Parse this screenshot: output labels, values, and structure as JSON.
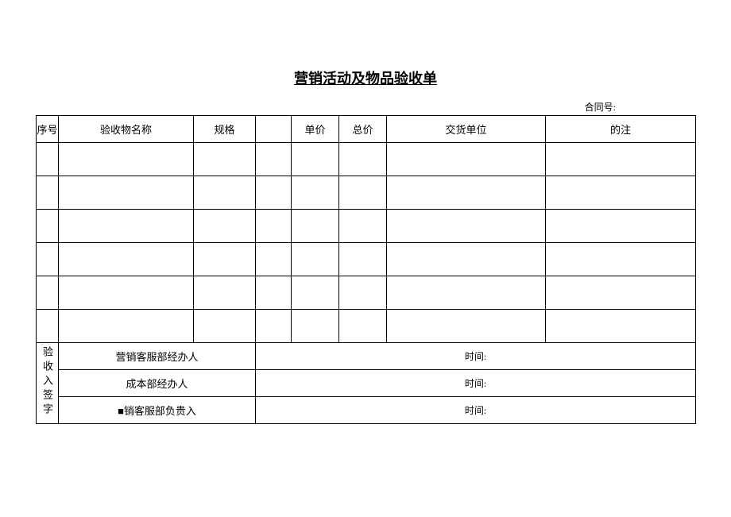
{
  "title": "营销活动及物品验收单",
  "contract_label": "合同号:",
  "headers": {
    "seq": "序号",
    "name": "验收物名称",
    "spec": "规格",
    "blank": "",
    "price": "单价",
    "total": "总价",
    "vendor": "交货单位",
    "note": "的注"
  },
  "rows": [
    {
      "seq": "",
      "name": "",
      "spec": "",
      "blank": "",
      "price": "",
      "total": "",
      "vendor": "",
      "note": ""
    },
    {
      "seq": "",
      "name": "",
      "spec": "",
      "blank": "",
      "price": "",
      "total": "",
      "vendor": "",
      "note": ""
    },
    {
      "seq": "",
      "name": "",
      "spec": "",
      "blank": "",
      "price": "",
      "total": "",
      "vendor": "",
      "note": ""
    },
    {
      "seq": "",
      "name": "",
      "spec": "",
      "blank": "",
      "price": "",
      "total": "",
      "vendor": "",
      "note": ""
    },
    {
      "seq": "",
      "name": "",
      "spec": "",
      "blank": "",
      "price": "",
      "total": "",
      "vendor": "",
      "note": ""
    },
    {
      "seq": "",
      "name": "",
      "spec": "",
      "blank": "",
      "price": "",
      "total": "",
      "vendor": "",
      "note": ""
    }
  ],
  "signature": {
    "section_label": "验收入签字",
    "row1_label": "营销客服部经办人",
    "row2_label": "成本部经办人",
    "row3_label": "■销客服部负贵入",
    "time_label": "时间:"
  },
  "style": {
    "title_fontsize": 18,
    "body_fontsize": 13,
    "small_fontsize": 12,
    "border_color": "#000000",
    "background_color": "#ffffff",
    "text_color": "#000000"
  }
}
